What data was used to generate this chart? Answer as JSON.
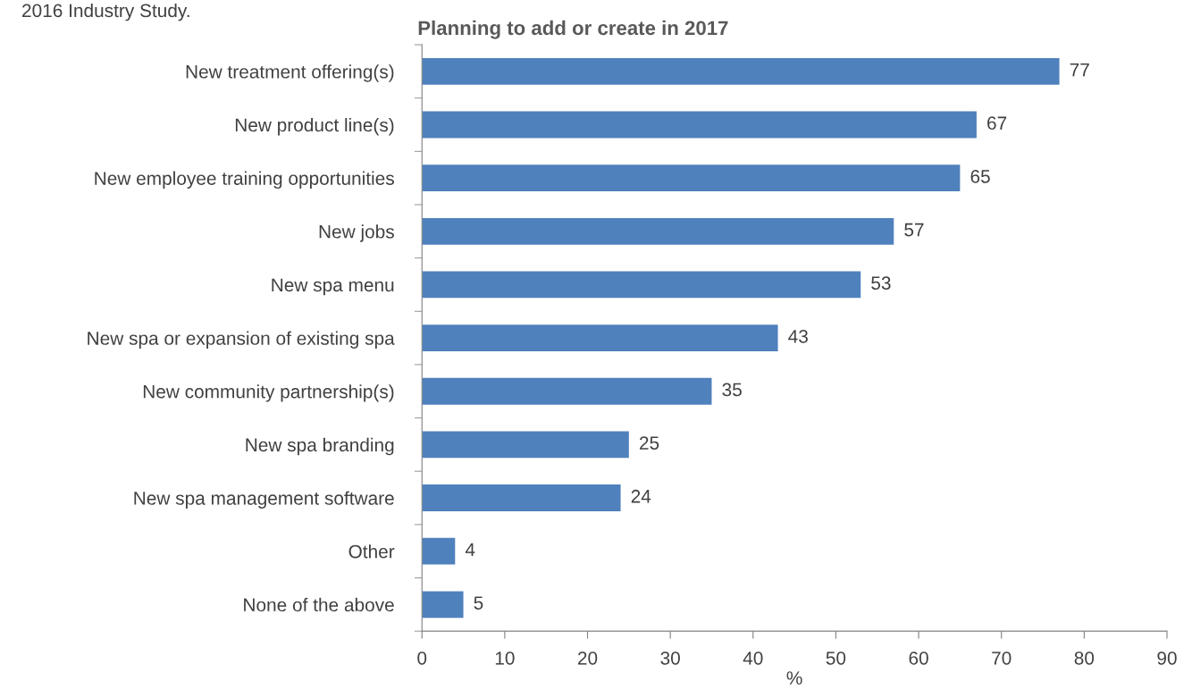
{
  "chart_data": {
    "type": "bar",
    "orientation": "horizontal",
    "title": "Planning to add or create in 2017",
    "xlabel": "%",
    "categories": [
      "New treatment offering(s)",
      "New product line(s)",
      "New employee training opportunities",
      "New jobs",
      "New spa menu",
      "New spa or expansion of existing spa",
      "New community partnership(s)",
      "New spa branding",
      "New spa management software",
      "Other",
      "None of the above"
    ],
    "values": [
      77,
      67,
      65,
      57,
      53,
      43,
      35,
      25,
      24,
      4,
      5
    ],
    "color": "#4f81bd",
    "data_labels": true,
    "xlim": [
      0,
      90
    ],
    "xticks": [
      0,
      10,
      20,
      30,
      40,
      50,
      60,
      70,
      80,
      90
    ],
    "grid": false,
    "legend": false,
    "annotations": [
      "2016 Industry Study."
    ]
  }
}
